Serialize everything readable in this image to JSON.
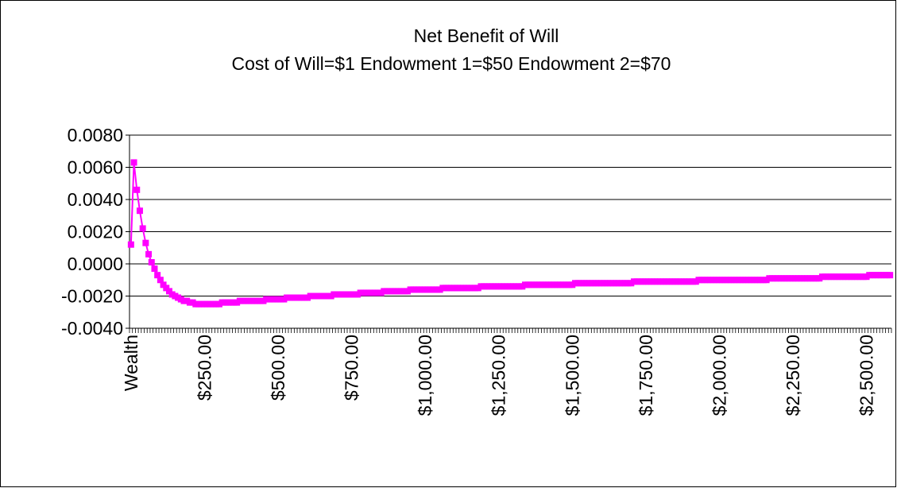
{
  "chart_data": {
    "type": "line",
    "title": "Net Benefit of Will",
    "subtitle": "Cost of Will=$1 Endowment 1=$50 Endowment 2=$70",
    "categories": [
      "Wealth",
      null,
      null,
      null,
      null,
      null,
      null,
      null,
      null,
      null,
      null,
      null,
      null,
      null,
      null,
      null,
      null,
      null,
      null,
      null,
      null,
      null,
      null,
      null,
      null,
      "$250.00",
      null,
      null,
      null,
      null,
      null,
      null,
      null,
      null,
      null,
      null,
      null,
      null,
      null,
      null,
      null,
      null,
      null,
      null,
      null,
      null,
      null,
      null,
      null,
      null,
      "$500.00",
      null,
      null,
      null,
      null,
      null,
      null,
      null,
      null,
      null,
      null,
      null,
      null,
      null,
      null,
      null,
      null,
      null,
      null,
      null,
      null,
      null,
      null,
      null,
      null,
      "$750.00",
      null,
      null,
      null,
      null,
      null,
      null,
      null,
      null,
      null,
      null,
      null,
      null,
      null,
      null,
      null,
      null,
      null,
      null,
      null,
      null,
      null,
      null,
      null,
      null,
      "$1,000.00",
      null,
      null,
      null,
      null,
      null,
      null,
      null,
      null,
      null,
      null,
      null,
      null,
      null,
      null,
      null,
      null,
      null,
      null,
      null,
      null,
      null,
      null,
      null,
      null,
      "$1,250.00",
      null,
      null,
      null,
      null,
      null,
      null,
      null,
      null,
      null,
      null,
      null,
      null,
      null,
      null,
      null,
      null,
      null,
      null,
      null,
      null,
      null,
      null,
      null,
      null,
      "$1,500.00",
      null,
      null,
      null,
      null,
      null,
      null,
      null,
      null,
      null,
      null,
      null,
      null,
      null,
      null,
      null,
      null,
      null,
      null,
      null,
      null,
      null,
      null,
      null,
      null,
      "$1,750.00",
      null,
      null,
      null,
      null,
      null,
      null,
      null,
      null,
      null,
      null,
      null,
      null,
      null,
      null,
      null,
      null,
      null,
      null,
      null,
      null,
      null,
      null,
      null,
      null,
      "$2,000.00",
      null,
      null,
      null,
      null,
      null,
      null,
      null,
      null,
      null,
      null,
      null,
      null,
      null,
      null,
      null,
      null,
      null,
      null,
      null,
      null,
      null,
      null,
      null,
      null,
      "$2,250.00",
      null,
      null,
      null,
      null,
      null,
      null,
      null,
      null,
      null,
      null,
      null,
      null,
      null,
      null,
      null,
      null,
      null,
      null,
      null,
      null,
      null,
      null,
      null,
      null,
      "$2,500.00",
      null,
      null,
      null,
      null,
      null,
      null,
      null,
      null
    ],
    "series": [
      {
        "color": "#ff00ff",
        "values": [
          0.0012,
          0.0063,
          0.0046,
          0.0033,
          0.0022,
          0.0013,
          0.0006,
          0.0001,
          -0.0003,
          -0.0007,
          -0.001,
          -0.0013,
          -0.0015,
          -0.0017,
          -0.0019,
          -0.002,
          -0.0021,
          -0.0022,
          -0.0023,
          -0.0023,
          -0.0024,
          -0.0024,
          -0.0025,
          -0.0025,
          -0.0025,
          -0.0025,
          -0.0025,
          -0.0025,
          -0.0025,
          -0.0025,
          -0.0025,
          -0.0024,
          -0.0024,
          -0.0024,
          -0.0024,
          -0.0024,
          -0.0024,
          -0.0023,
          -0.0023,
          -0.0023,
          -0.0023,
          -0.0023,
          -0.0023,
          -0.0023,
          -0.0023,
          -0.0023,
          -0.0022,
          -0.0022,
          -0.0022,
          -0.0022,
          -0.0022,
          -0.0022,
          -0.0022,
          -0.0021,
          -0.0021,
          -0.0021,
          -0.0021,
          -0.0021,
          -0.0021,
          -0.0021,
          -0.0021,
          -0.002,
          -0.002,
          -0.002,
          -0.002,
          -0.002,
          -0.002,
          -0.002,
          -0.002,
          -0.0019,
          -0.0019,
          -0.0019,
          -0.0019,
          -0.0019,
          -0.0019,
          -0.0019,
          -0.0019,
          -0.0019,
          -0.0018,
          -0.0018,
          -0.0018,
          -0.0018,
          -0.0018,
          -0.0018,
          -0.0018,
          -0.0018,
          -0.0017,
          -0.0017,
          -0.0017,
          -0.0017,
          -0.0017,
          -0.0017,
          -0.0017,
          -0.0017,
          -0.0017,
          -0.0016,
          -0.0016,
          -0.0016,
          -0.0016,
          -0.0016,
          -0.0016,
          -0.0016,
          -0.0016,
          -0.0016,
          -0.0016,
          -0.0016,
          -0.0015,
          -0.0015,
          -0.0015,
          -0.0015,
          -0.0015,
          -0.0015,
          -0.0015,
          -0.0015,
          -0.0015,
          -0.0015,
          -0.0015,
          -0.0015,
          -0.0015,
          -0.0014,
          -0.0014,
          -0.0014,
          -0.0014,
          -0.0014,
          -0.0014,
          -0.0014,
          -0.0014,
          -0.0014,
          -0.0014,
          -0.0014,
          -0.0014,
          -0.0014,
          -0.0014,
          -0.0014,
          -0.0013,
          -0.0013,
          -0.0013,
          -0.0013,
          -0.0013,
          -0.0013,
          -0.0013,
          -0.0013,
          -0.0013,
          -0.0013,
          -0.0013,
          -0.0013,
          -0.0013,
          -0.0013,
          -0.0013,
          -0.0013,
          -0.0013,
          -0.0012,
          -0.0012,
          -0.0012,
          -0.0012,
          -0.0012,
          -0.0012,
          -0.0012,
          -0.0012,
          -0.0012,
          -0.0012,
          -0.0012,
          -0.0012,
          -0.0012,
          -0.0012,
          -0.0012,
          -0.0012,
          -0.0012,
          -0.0012,
          -0.0012,
          -0.0012,
          -0.0011,
          -0.0011,
          -0.0011,
          -0.0011,
          -0.0011,
          -0.0011,
          -0.0011,
          -0.0011,
          -0.0011,
          -0.0011,
          -0.0011,
          -0.0011,
          -0.0011,
          -0.0011,
          -0.0011,
          -0.0011,
          -0.0011,
          -0.0011,
          -0.0011,
          -0.0011,
          -0.0011,
          -0.0011,
          -0.001,
          -0.001,
          -0.001,
          -0.001,
          -0.001,
          -0.001,
          -0.001,
          -0.001,
          -0.001,
          -0.001,
          -0.001,
          -0.001,
          -0.001,
          -0.001,
          -0.001,
          -0.001,
          -0.001,
          -0.001,
          -0.001,
          -0.001,
          -0.001,
          -0.001,
          -0.001,
          -0.001,
          -0.0009,
          -0.0009,
          -0.0009,
          -0.0009,
          -0.0009,
          -0.0009,
          -0.0009,
          -0.0009,
          -0.0009,
          -0.0009,
          -0.0009,
          -0.0009,
          -0.0009,
          -0.0009,
          -0.0009,
          -0.0009,
          -0.0009,
          -0.0009,
          -0.0008,
          -0.0008,
          -0.0008,
          -0.0008,
          -0.0008,
          -0.0008,
          -0.0008,
          -0.0008,
          -0.0008,
          -0.0008,
          -0.0008,
          -0.0008,
          -0.0008,
          -0.0008,
          -0.0008,
          -0.0008,
          -0.0007,
          -0.0007,
          -0.0007,
          -0.0007,
          -0.0007,
          -0.0007,
          -0.0007,
          -0.0007
        ]
      }
    ],
    "ylim": [
      -0.004,
      0.008
    ],
    "yticks": [
      {
        "value": -0.004,
        "label": "-0.0040"
      },
      {
        "value": -0.002,
        "label": "-0.0020"
      },
      {
        "value": 0,
        "label": "0.0000"
      },
      {
        "value": 0.002,
        "label": "0.0020"
      },
      {
        "value": 0.004,
        "label": "0.0040"
      },
      {
        "value": 0.006,
        "label": "0.0060"
      },
      {
        "value": 0.008,
        "label": "0.0080"
      }
    ],
    "grid": true
  }
}
